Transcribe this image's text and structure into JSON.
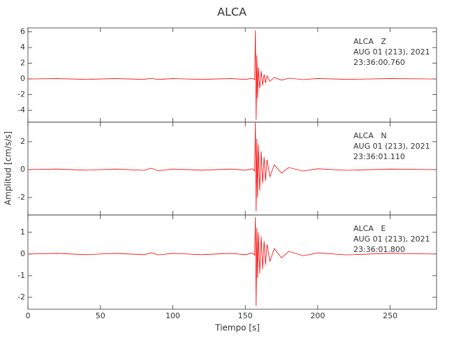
{
  "title": "ALCA",
  "x_label": "Tiempo [s]",
  "y_label": "Amplitud [cm/s/s]",
  "chart_data": [
    {
      "type": "line",
      "annotation": [
        "ALCA   Z",
        "AUG 01 (213), 2021",
        "23:36:00.760"
      ],
      "color": "#ff0000",
      "x": [
        0,
        20,
        40,
        60,
        80,
        85,
        90,
        100,
        120,
        140,
        150,
        155,
        156.5,
        157,
        157.5,
        158,
        158.5,
        159,
        160,
        161,
        162,
        163,
        164,
        165,
        167,
        170,
        175,
        180,
        190,
        200,
        220,
        250,
        280
      ],
      "values": [
        0,
        0.05,
        -0.05,
        0.05,
        -0.05,
        0.08,
        -0.06,
        0.05,
        -0.05,
        0.05,
        -0.05,
        0.08,
        -0.1,
        6.2,
        -5.2,
        3,
        -2.5,
        1.5,
        -1.2,
        1,
        -0.8,
        0.6,
        -0.5,
        0.4,
        -0.3,
        0.2,
        -0.15,
        0.1,
        -0.08,
        0.06,
        -0.05,
        0.05,
        0
      ],
      "xlim": [
        0,
        282
      ],
      "xticks": [
        0,
        50,
        100,
        150,
        200,
        250
      ],
      "ylim": [
        -5.5,
        6.5
      ],
      "yticks": [
        -4,
        -2,
        0,
        2,
        4,
        6
      ]
    },
    {
      "type": "line",
      "annotation": [
        "ALCA   N",
        "AUG 01 (213), 2021",
        "23:36:01.110"
      ],
      "color": "#ff0000",
      "x": [
        0,
        20,
        40,
        60,
        80,
        85,
        90,
        100,
        120,
        140,
        150,
        155,
        156.5,
        157,
        157.5,
        158,
        158.5,
        159,
        160,
        161,
        162,
        163,
        164,
        165,
        167,
        170,
        175,
        180,
        190,
        200,
        220,
        250,
        280
      ],
      "values": [
        0,
        0.04,
        -0.04,
        0.04,
        -0.05,
        0.1,
        -0.08,
        0.04,
        -0.04,
        0.04,
        -0.04,
        0.06,
        -0.1,
        3.4,
        -3,
        2.2,
        -2,
        1.8,
        -1.5,
        1.3,
        -1,
        0.9,
        -0.8,
        0.7,
        -0.5,
        0.35,
        -0.25,
        0.15,
        -0.1,
        0.06,
        -0.05,
        0.04,
        0
      ],
      "xlim": [
        0,
        282
      ],
      "xticks": [
        0,
        50,
        100,
        150,
        200,
        250
      ],
      "ylim": [
        -3.25,
        3.4
      ],
      "yticks": [
        -2,
        0,
        2
      ]
    },
    {
      "type": "line",
      "annotation": [
        "ALCA   E",
        "AUG 01 (213), 2021",
        "23:36:01.800"
      ],
      "color": "#ff0000",
      "x": [
        0,
        20,
        40,
        60,
        80,
        85,
        90,
        100,
        120,
        140,
        150,
        155,
        156.5,
        157,
        157.5,
        158,
        158.5,
        159,
        160,
        161,
        162,
        163,
        164,
        165,
        167,
        170,
        175,
        180,
        190,
        200,
        220,
        250,
        280
      ],
      "values": [
        0,
        0.03,
        -0.03,
        0.03,
        -0.03,
        0.05,
        -0.04,
        0.03,
        -0.03,
        0.03,
        -0.03,
        0.04,
        -0.06,
        1.7,
        -2.4,
        1.2,
        -1.1,
        1,
        -0.9,
        0.8,
        -0.7,
        0.6,
        -0.5,
        0.45,
        -0.35,
        0.25,
        -0.18,
        0.12,
        -0.08,
        0.05,
        -0.04,
        0.03,
        0
      ],
      "xlim": [
        0,
        282
      ],
      "xticks": [
        0,
        50,
        100,
        150,
        200,
        250
      ],
      "ylim": [
        -2.55,
        1.8
      ],
      "yticks": [
        -2,
        -1,
        0,
        1
      ]
    }
  ]
}
